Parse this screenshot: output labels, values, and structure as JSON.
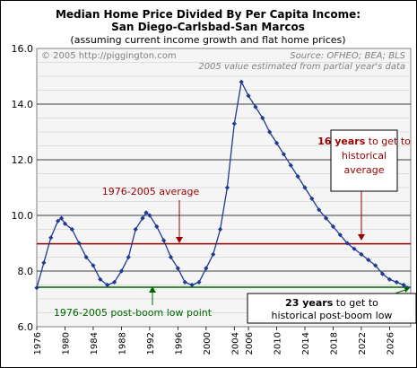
{
  "chart_data": {
    "type": "line",
    "title": "Median Home Price Divided By Per Capita Income:",
    "subtitle": "San Diego-Carlsbad-San Marcos",
    "subtitle2": "(assuming current income growth and flat home prices)",
    "copyright": "© 2005 http://piggington.com",
    "source": "Source: OFHEO; BEA; BLS",
    "source_note": "2005 value estimated from partial year's data",
    "xlim": [
      1976,
      2029
    ],
    "ylim": [
      6.0,
      16.0
    ],
    "yticks": [
      "6.0",
      "8.0",
      "10.0",
      "12.0",
      "14.0",
      "16.0"
    ],
    "xticks": [
      "1976",
      "1980",
      "1984",
      "1988",
      "1992",
      "1996",
      "2000",
      "2004",
      "2006",
      "2010",
      "2014",
      "2018",
      "2022",
      "2026"
    ],
    "grid": true,
    "series": [
      {
        "x": [
          1976.0,
          1977.0,
          1978.0,
          1979.0,
          1979.5,
          1980.0,
          1981.0,
          1982.0,
          1983.0,
          1984.0,
          1985.0,
          1986.0,
          1987.0,
          1988.0,
          1989.0,
          1990.0,
          1991.0,
          1991.5,
          1992.0,
          1993.0,
          1994.0,
          1995.0,
          1996.0,
          1997.0,
          1998.0,
          1999.0,
          2000.0,
          2001.0,
          2002.0,
          2003.0,
          2004.0,
          2005.0,
          2006.0,
          2007.0,
          2008.0,
          2009.0,
          2010.0,
          2011.0,
          2012.0,
          2013.0,
          2014.0,
          2015.0,
          2016.0,
          2017.0,
          2018.0,
          2019.0,
          2020.0,
          2021.0,
          2022.0,
          2023.0,
          2024.0,
          2025.0,
          2026.0,
          2027.0,
          2028.0,
          2028.5
        ],
        "values": [
          7.4,
          8.3,
          9.2,
          9.8,
          9.9,
          9.7,
          9.5,
          9.0,
          8.5,
          8.2,
          7.7,
          7.5,
          7.6,
          8.0,
          8.5,
          9.5,
          9.9,
          10.1,
          10.0,
          9.6,
          9.1,
          8.5,
          8.1,
          7.6,
          7.5,
          7.6,
          8.1,
          8.6,
          9.5,
          11.0,
          13.3,
          14.8,
          14.3,
          13.9,
          13.5,
          13.0,
          12.6,
          12.2,
          11.8,
          11.4,
          11.0,
          10.6,
          10.2,
          9.9,
          9.6,
          9.3,
          9.0,
          8.8,
          8.6,
          8.4,
          8.2,
          7.9,
          7.7,
          7.6,
          7.5,
          7.4
        ]
      }
    ],
    "reference_lines": [
      {
        "y": 8.98,
        "label": "1976-2005 average",
        "color": "#990000"
      },
      {
        "y": 7.42,
        "label": "1976-2005 post-boom low point",
        "color": "#006600"
      }
    ],
    "annotations": [
      {
        "bold": "16 years",
        "rest": " to get to",
        "line2": "historical",
        "line3": "average",
        "color": "#990000"
      },
      {
        "bold": "23 years",
        "rest": " to get to",
        "line2": "historical post-boom low",
        "color": "#000000"
      }
    ],
    "colors": {
      "series": "#1f3a93",
      "plot_bg": "#f5f5f5",
      "avg_line": "#990000",
      "low_line": "#006600",
      "text": "#000000",
      "note_text": "#808080"
    }
  }
}
